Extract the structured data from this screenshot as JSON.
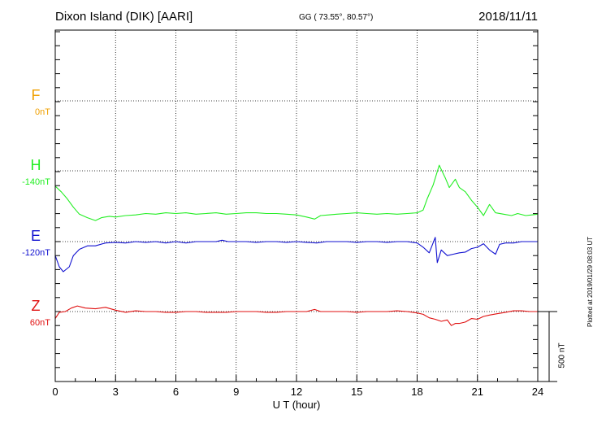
{
  "header": {
    "title": "Dixon Island (DIK)  [AARI]",
    "coords": "GG ( 73.55°,  80.57°)",
    "date": "2018/11/11"
  },
  "plotted_note": "Plotted at 2019/01/29 08:03 UT",
  "scale_label": "500 nT",
  "colors": {
    "F": "#f0a000",
    "H": "#22ee22",
    "E": "#1010d0",
    "Z": "#e01010",
    "grid": "#000000"
  },
  "chart_data": {
    "type": "line",
    "xlabel": "U T (hour)",
    "xlim": [
      0,
      24
    ],
    "xticks": [
      0,
      3,
      6,
      9,
      12,
      15,
      18,
      21,
      24
    ],
    "ylabel": "",
    "scale_bar_nT": 500,
    "grid": true,
    "series": [
      {
        "name": "F",
        "baseline_label": "0nT",
        "points": []
      },
      {
        "name": "H",
        "baseline_label": "-140nT",
        "points": [
          [
            0,
            -110
          ],
          [
            0.3,
            -150
          ],
          [
            0.6,
            -200
          ],
          [
            0.9,
            -260
          ],
          [
            1.2,
            -310
          ],
          [
            1.6,
            -335
          ],
          [
            2.0,
            -355
          ],
          [
            2.3,
            -335
          ],
          [
            2.7,
            -325
          ],
          [
            3.0,
            -330
          ],
          [
            3.5,
            -320
          ],
          [
            4.0,
            -315
          ],
          [
            4.5,
            -305
          ],
          [
            5.0,
            -310
          ],
          [
            5.5,
            -300
          ],
          [
            6.0,
            -305
          ],
          [
            6.5,
            -300
          ],
          [
            7.0,
            -310
          ],
          [
            7.5,
            -305
          ],
          [
            8.0,
            -300
          ],
          [
            8.5,
            -310
          ],
          [
            9.0,
            -305
          ],
          [
            9.5,
            -300
          ],
          [
            10.0,
            -300
          ],
          [
            10.5,
            -305
          ],
          [
            11.0,
            -305
          ],
          [
            11.5,
            -310
          ],
          [
            12.0,
            -315
          ],
          [
            12.5,
            -330
          ],
          [
            12.9,
            -345
          ],
          [
            13.2,
            -320
          ],
          [
            13.6,
            -315
          ],
          [
            14.0,
            -310
          ],
          [
            14.5,
            -305
          ],
          [
            15.0,
            -300
          ],
          [
            15.5,
            -305
          ],
          [
            16.0,
            -310
          ],
          [
            16.5,
            -305
          ],
          [
            17.0,
            -310
          ],
          [
            17.5,
            -305
          ],
          [
            18.0,
            -300
          ],
          [
            18.3,
            -280
          ],
          [
            18.5,
            -200
          ],
          [
            18.8,
            -100
          ],
          [
            19.1,
            40
          ],
          [
            19.4,
            -50
          ],
          [
            19.6,
            -120
          ],
          [
            19.9,
            -60
          ],
          [
            20.1,
            -120
          ],
          [
            20.4,
            -150
          ],
          [
            20.7,
            -210
          ],
          [
            21.0,
            -260
          ],
          [
            21.3,
            -320
          ],
          [
            21.6,
            -240
          ],
          [
            21.9,
            -300
          ],
          [
            22.3,
            -310
          ],
          [
            22.7,
            -320
          ],
          [
            23.0,
            -305
          ],
          [
            23.4,
            -320
          ],
          [
            23.7,
            -315
          ],
          [
            24.0,
            -310
          ]
        ]
      },
      {
        "name": "E",
        "baseline_label": "-120nT",
        "points": [
          [
            0,
            -100
          ],
          [
            0.2,
            -180
          ],
          [
            0.4,
            -215
          ],
          [
            0.7,
            -180
          ],
          [
            0.9,
            -100
          ],
          [
            1.2,
            -55
          ],
          [
            1.6,
            -30
          ],
          [
            2.0,
            -30
          ],
          [
            2.5,
            -10
          ],
          [
            3.0,
            -5
          ],
          [
            3.5,
            -10
          ],
          [
            4.0,
            0
          ],
          [
            4.5,
            -5
          ],
          [
            5.0,
            0
          ],
          [
            5.5,
            -10
          ],
          [
            6.0,
            0
          ],
          [
            6.5,
            -10
          ],
          [
            7.0,
            0
          ],
          [
            7.5,
            0
          ],
          [
            8.0,
            0
          ],
          [
            8.3,
            10
          ],
          [
            8.6,
            0
          ],
          [
            9.0,
            0
          ],
          [
            9.5,
            0
          ],
          [
            10.0,
            -5
          ],
          [
            10.5,
            0
          ],
          [
            11.0,
            0
          ],
          [
            11.5,
            -5
          ],
          [
            12.0,
            0
          ],
          [
            12.5,
            -5
          ],
          [
            13.0,
            -10
          ],
          [
            13.5,
            0
          ],
          [
            14.0,
            0
          ],
          [
            14.5,
            0
          ],
          [
            15.0,
            -5
          ],
          [
            15.5,
            0
          ],
          [
            16.0,
            0
          ],
          [
            16.5,
            -5
          ],
          [
            17.0,
            0
          ],
          [
            17.5,
            0
          ],
          [
            18.0,
            -10
          ],
          [
            18.3,
            -40
          ],
          [
            18.6,
            -80
          ],
          [
            18.9,
            30
          ],
          [
            19.0,
            -150
          ],
          [
            19.2,
            -60
          ],
          [
            19.5,
            -100
          ],
          [
            19.8,
            -90
          ],
          [
            20.1,
            -80
          ],
          [
            20.4,
            -75
          ],
          [
            20.7,
            -50
          ],
          [
            21.0,
            -40
          ],
          [
            21.3,
            -15
          ],
          [
            21.6,
            -60
          ],
          [
            21.9,
            -90
          ],
          [
            22.1,
            -20
          ],
          [
            22.4,
            -10
          ],
          [
            22.8,
            -10
          ],
          [
            23.2,
            0
          ],
          [
            23.6,
            0
          ],
          [
            24.0,
            0
          ]
        ]
      },
      {
        "name": "Z",
        "baseline_label": "60nT",
        "points": [
          [
            0,
            -50
          ],
          [
            0.2,
            -5
          ],
          [
            0.5,
            0
          ],
          [
            0.8,
            25
          ],
          [
            1.1,
            40
          ],
          [
            1.5,
            25
          ],
          [
            2.0,
            20
          ],
          [
            2.5,
            30
          ],
          [
            3.0,
            10
          ],
          [
            3.5,
            -5
          ],
          [
            4.0,
            5
          ],
          [
            4.5,
            0
          ],
          [
            5.0,
            0
          ],
          [
            5.5,
            -5
          ],
          [
            6.0,
            -5
          ],
          [
            6.5,
            0
          ],
          [
            7.0,
            0
          ],
          [
            7.5,
            -5
          ],
          [
            8.0,
            -5
          ],
          [
            8.5,
            -5
          ],
          [
            9.0,
            0
          ],
          [
            9.5,
            0
          ],
          [
            10.0,
            0
          ],
          [
            10.5,
            -5
          ],
          [
            11.0,
            -5
          ],
          [
            11.5,
            0
          ],
          [
            12.0,
            0
          ],
          [
            12.5,
            0
          ],
          [
            12.9,
            15
          ],
          [
            13.2,
            0
          ],
          [
            13.6,
            0
          ],
          [
            14.0,
            0
          ],
          [
            14.5,
            0
          ],
          [
            15.0,
            -5
          ],
          [
            15.5,
            0
          ],
          [
            16.0,
            0
          ],
          [
            16.5,
            0
          ],
          [
            17.0,
            5
          ],
          [
            17.5,
            0
          ],
          [
            18.0,
            -10
          ],
          [
            18.3,
            -20
          ],
          [
            18.6,
            -45
          ],
          [
            18.9,
            -55
          ],
          [
            19.2,
            -70
          ],
          [
            19.5,
            -60
          ],
          [
            19.7,
            -100
          ],
          [
            19.9,
            -85
          ],
          [
            20.1,
            -85
          ],
          [
            20.4,
            -75
          ],
          [
            20.7,
            -50
          ],
          [
            21.0,
            -55
          ],
          [
            21.3,
            -35
          ],
          [
            21.6,
            -25
          ],
          [
            22.0,
            -15
          ],
          [
            22.4,
            -5
          ],
          [
            22.8,
            5
          ],
          [
            23.2,
            5
          ],
          [
            23.6,
            0
          ],
          [
            24.0,
            0
          ]
        ]
      }
    ]
  }
}
